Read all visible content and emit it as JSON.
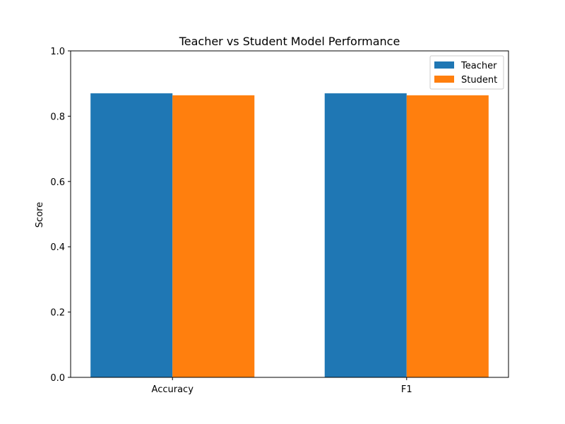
{
  "chart_data": {
    "type": "bar",
    "title": "Teacher vs Student Model Performance",
    "xlabel": "",
    "ylabel": "Score",
    "categories": [
      "Accuracy",
      "F1"
    ],
    "series": [
      {
        "name": "Teacher",
        "values": [
          0.87,
          0.87
        ],
        "color": "#1f77b4"
      },
      {
        "name": "Student",
        "values": [
          0.864,
          0.864
        ],
        "color": "#ff7f0e"
      }
    ],
    "ylim": [
      0,
      1.0
    ],
    "yticks": [
      0.0,
      0.2,
      0.4,
      0.6,
      0.8,
      1.0
    ],
    "ytick_labels": [
      "0.0",
      "0.2",
      "0.4",
      "0.6",
      "0.8",
      "1.0"
    ],
    "grid": false,
    "legend_position": "top-right"
  }
}
